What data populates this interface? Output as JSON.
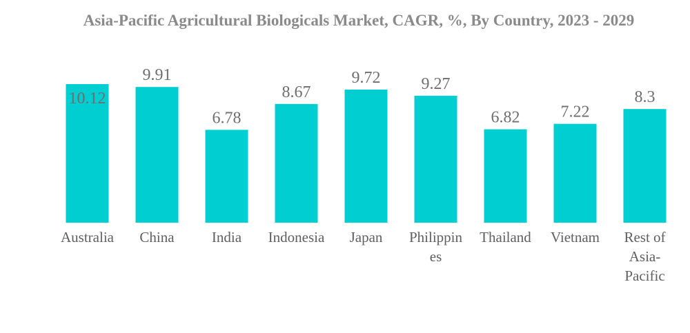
{
  "chart_data": {
    "type": "bar",
    "title": "Asia-Pacific Agricultural Biologicals Market, CAGR, %, By Country, 2023 - 2029",
    "xlabel": "",
    "ylabel": "",
    "categories": [
      "Australia",
      "China",
      "India",
      "Indonesia",
      "Japan",
      "Philippines",
      "Thailand",
      "Vietnam",
      "Rest of Asia-Pacific"
    ],
    "category_lines": [
      [
        "Australia"
      ],
      [
        "China"
      ],
      [
        "India"
      ],
      [
        "Indonesia"
      ],
      [
        "Japan"
      ],
      [
        "Philippin",
        "es"
      ],
      [
        "Thailand"
      ],
      [
        "Vietnam"
      ],
      [
        "Rest of",
        "Asia-",
        "Pacific"
      ]
    ],
    "values": [
      10.12,
      9.91,
      6.78,
      8.67,
      9.72,
      9.27,
      6.82,
      7.22,
      8.3
    ],
    "value_labels": [
      "10.12",
      "9.91",
      "6.78",
      "8.67",
      "9.72",
      "9.27",
      "6.82",
      "7.22",
      "8.3"
    ],
    "ylim": [
      0,
      10.12
    ],
    "grid": false,
    "legend": "none",
    "colors": {
      "bar": "#00ced1",
      "value_label": "#6e6e6e",
      "category_label": "#5f5f5f",
      "title": "#8a8a8a"
    }
  }
}
